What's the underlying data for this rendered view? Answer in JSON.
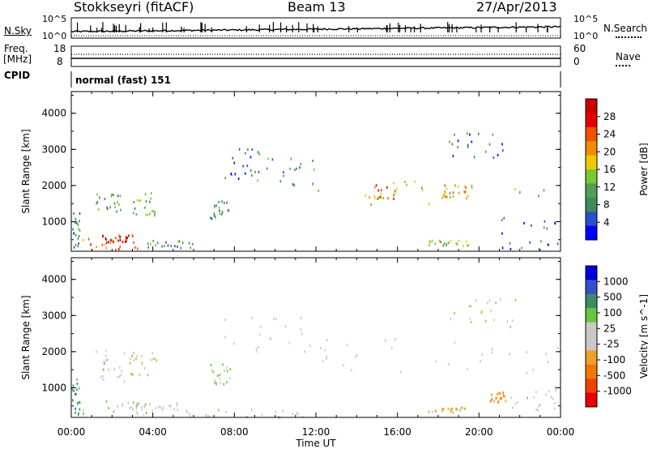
{
  "header": {
    "station": "Stokkseyri (fitACF)",
    "beam": "Beam 13",
    "date": "27/Apr/2013"
  },
  "strip": {
    "nsky_label": "N.Sky",
    "nsky_ticks": [
      "10^5",
      "10^0"
    ],
    "nsearch_label": "N.Search",
    "nsearch_ticks": [
      "10^5",
      "10^0"
    ],
    "freq_label": "Freq.",
    "freq_unit": "[MHz]",
    "freq_ticks": [
      "18",
      "8"
    ],
    "nave_label": "Nave",
    "nave_ticks": [
      "60",
      "0"
    ],
    "cpid_label": "CPID",
    "cpid_value": "normal (fast) 151"
  },
  "colors": {
    "power_scale": [
      "#0000ff",
      "#2a50c8",
      "#3c8c5a",
      "#50a050",
      "#7ac832",
      "#f0c800",
      "#f08c00",
      "#f05000",
      "#e60000",
      "#c80000"
    ],
    "velocity_scale": [
      "#0000dc",
      "#3250c8",
      "#3c8c64",
      "#64c83c",
      "#c8c8c8",
      "#c8c8c8",
      "#f0a028",
      "#f07800",
      "#f04000",
      "#e60000"
    ],
    "ground_scatter": "#c8c8c0"
  },
  "chart_data": [
    {
      "type": "heatmap",
      "name": "power",
      "ylabel": "Slant Range [km]",
      "yticks": [
        "1000",
        "2000",
        "3000",
        "4000"
      ],
      "ylim": [
        180,
        4600
      ],
      "xlim": [
        0,
        24
      ],
      "xticks": [
        "00:00",
        "04:00",
        "08:00",
        "12:00",
        "16:00",
        "20:00",
        "00:00"
      ],
      "colorbar_label": "Power [dB]",
      "colorbar_ticks": [
        "4",
        "8",
        "12",
        "16",
        "20",
        "24",
        "28"
      ],
      "colorbar_range": [
        0,
        30
      ],
      "regions": [
        {
          "t0": 0.0,
          "t1": 0.4,
          "r0": 250,
          "r1": 1300,
          "v": 8
        },
        {
          "t0": 0.5,
          "t1": 3.6,
          "r0": 250,
          "r1": 700,
          "v": 20
        },
        {
          "t0": 1.5,
          "t1": 2.8,
          "r0": 400,
          "r1": 650,
          "v": 28
        },
        {
          "t0": 3.6,
          "t1": 6.0,
          "r0": 250,
          "r1": 500,
          "v": 8
        },
        {
          "t0": 1.2,
          "t1": 2.6,
          "r0": 1300,
          "r1": 1800,
          "v": 10
        },
        {
          "t0": 3.0,
          "t1": 4.2,
          "r0": 1200,
          "r1": 1900,
          "v": 12
        },
        {
          "t0": 6.8,
          "t1": 7.8,
          "r0": 1100,
          "r1": 1600,
          "v": 10
        },
        {
          "t0": 7.5,
          "t1": 9.2,
          "r0": 2200,
          "r1": 3100,
          "v": 6
        },
        {
          "t0": 9.0,
          "t1": 12.0,
          "r0": 2000,
          "r1": 2800,
          "v": 8
        },
        {
          "t0": 12.0,
          "t1": 23.8,
          "r0": 1500,
          "r1": 2200,
          "v": 14
        },
        {
          "t0": 14.5,
          "t1": 16.0,
          "r0": 1650,
          "r1": 2050,
          "v": 20
        },
        {
          "t0": 17.5,
          "t1": 19.5,
          "r0": 1650,
          "r1": 2050,
          "v": 20
        },
        {
          "t0": 18.5,
          "t1": 22.0,
          "r0": 2800,
          "r1": 3500,
          "v": 6
        },
        {
          "t0": 21.0,
          "t1": 24.0,
          "r0": 250,
          "r1": 1200,
          "v": 6
        },
        {
          "t0": 17.5,
          "t1": 19.5,
          "r0": 350,
          "r1": 500,
          "v": 14
        }
      ]
    },
    {
      "type": "heatmap",
      "name": "velocity",
      "ylabel": "Slant Range [km]",
      "yticks": [
        "1000",
        "2000",
        "3000",
        "4000"
      ],
      "ylim": [
        180,
        4600
      ],
      "xlim": [
        0,
        24
      ],
      "xticks": [
        "00:00",
        "04:00",
        "08:00",
        "12:00",
        "16:00",
        "20:00",
        "00:00"
      ],
      "xlabel": "Time UT",
      "colorbar_label": "Velocity [m s^-1]",
      "colorbar_ticks": [
        "1000",
        "500",
        "100",
        "25",
        "-25",
        "-100",
        "-500",
        "-1000"
      ],
      "regions": [
        {
          "t0": 0.0,
          "t1": 0.4,
          "r0": 250,
          "r1": 1300,
          "v": 600
        },
        {
          "t0": 0.5,
          "t1": 4.0,
          "r0": 250,
          "r1": 700,
          "v": 200
        },
        {
          "t0": 2.0,
          "t1": 5.5,
          "r0": 350,
          "r1": 600,
          "v": 0,
          "g": true
        },
        {
          "t0": 1.2,
          "t1": 2.6,
          "r0": 1200,
          "r1": 2100,
          "v": 100
        },
        {
          "t0": 2.8,
          "t1": 4.2,
          "r0": 1300,
          "r1": 2000,
          "v": -200
        },
        {
          "t0": 6.8,
          "t1": 7.8,
          "r0": 1100,
          "r1": 1700,
          "v": 200
        },
        {
          "t0": 7.5,
          "t1": 12.0,
          "r0": 2000,
          "r1": 3000,
          "v": 0,
          "g": true
        },
        {
          "t0": 12.0,
          "t1": 24.0,
          "r0": 1400,
          "r1": 2400,
          "v": 0,
          "g": true
        },
        {
          "t0": 18.5,
          "t1": 22.0,
          "r0": 2700,
          "r1": 3500,
          "v": -200
        },
        {
          "t0": 21.5,
          "t1": 24.0,
          "r0": 400,
          "r1": 1100,
          "v": 100
        },
        {
          "t0": 20.5,
          "t1": 21.3,
          "r0": 600,
          "r1": 900,
          "v": -400
        },
        {
          "t0": 17.5,
          "t1": 19.5,
          "r0": 350,
          "r1": 500,
          "v": -300
        },
        {
          "t0": 5.0,
          "t1": 12.0,
          "r0": 200,
          "r1": 420,
          "v": -100
        }
      ]
    }
  ]
}
